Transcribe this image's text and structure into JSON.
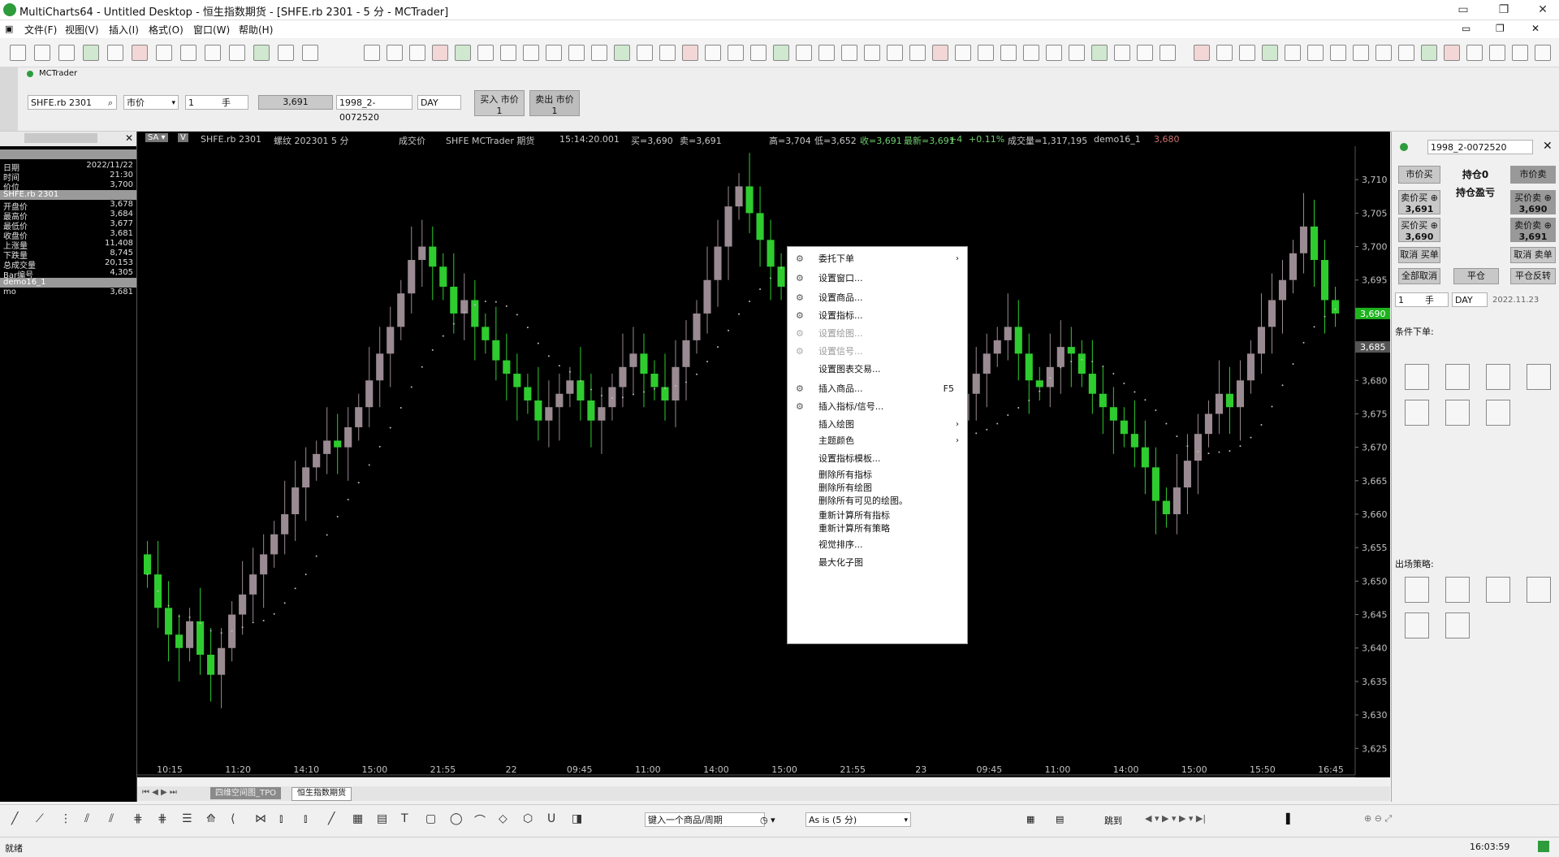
{
  "window": {
    "title": "MultiCharts64 - Untitled Desktop - 恒生指数期货 - [SHFE.rb 2301 - 5 分 - MCTrader]",
    "min_icon": "minimize-icon",
    "max_icon": "maximize-icon",
    "close_icon": "close-icon"
  },
  "menu": [
    "文件(F)",
    "视图(V)",
    "插入(I)",
    "格式(O)",
    "窗口(W)",
    "帮助(H)"
  ],
  "broker": "MCTrader",
  "trade": {
    "symbol": "SHFE.rb 2301",
    "order_type": "市价",
    "qty": "1",
    "qty_unit": "手",
    "price": "3,691",
    "account": "1998_2-0072520",
    "tif": "DAY",
    "buy_label": "买入 市价",
    "buy_qty": "1",
    "sell_label": "卖出 市价",
    "sell_qty": "1"
  },
  "data_window": {
    "header": "",
    "rows": [
      {
        "k": "日期",
        "v": "2022/11/22"
      },
      {
        "k": "时间",
        "v": "21:30"
      },
      {
        "k": "价位",
        "v": "3,700"
      }
    ],
    "section1": "SHFE.rb 2301",
    "rows2": [
      {
        "k": "开盘价",
        "v": "3,678"
      },
      {
        "k": "最高价",
        "v": "3,684"
      },
      {
        "k": "最低价",
        "v": "3,677"
      },
      {
        "k": "收盘价",
        "v": "3,681"
      },
      {
        "k": "上涨量",
        "v": "11,408"
      },
      {
        "k": "下跌量",
        "v": "8,745"
      },
      {
        "k": "总成交量",
        "v": "20,153"
      },
      {
        "k": "Bar编号",
        "v": "4,305"
      }
    ],
    "section2": "demo16_1",
    "rows3": [
      {
        "k": "mo",
        "v": "3,681"
      }
    ]
  },
  "chart_head": {
    "symbol": "SHFE.rb 2301",
    "contract": "螺纹 202301 5 分",
    "price_type": "成交价",
    "exchange": "SHFE MCTrader 期货",
    "time": "15:14:20.001",
    "bid": "买=3,690",
    "ask": "卖=3,691",
    "high": "高=3,704",
    "low": "低=3,652",
    "close": "收=3,691",
    "last": "最新=3,691",
    "change": "+4",
    "pct": "+0.11%",
    "volume": "成交量=1,317,195",
    "indicator": "demo16_1",
    "indicator_val": "3,680"
  },
  "context_menu": {
    "items": [
      {
        "label": "委托下单",
        "icon": "order-icon",
        "arrow": true
      },
      {
        "label": "设置窗口...",
        "icon": "window-settings-icon"
      },
      {
        "label": "设置商品...",
        "icon": "symbol-settings-icon"
      },
      {
        "label": "设置指标...",
        "icon": "indicator-settings-icon"
      },
      {
        "label": "设置绘图...",
        "icon": "drawing-settings-icon",
        "disabled": true
      },
      {
        "label": "设置信号...",
        "icon": "signal-settings-icon",
        "disabled": true
      },
      {
        "label": "设置图表交易...",
        "icon": ""
      },
      {
        "label": "插入商品...",
        "icon": "insert-symbol-icon",
        "shortcut": "F5"
      },
      {
        "label": "插入指标/信号...",
        "icon": "insert-indicator-icon"
      },
      {
        "label": "插入绘图",
        "icon": "",
        "arrow": true
      },
      {
        "label": "主题颜色",
        "icon": "",
        "arrow": true
      },
      {
        "label": "设置指标模板...",
        "icon": ""
      },
      {
        "label": "删除所有指标",
        "icon": ""
      },
      {
        "label": "删除所有绘图",
        "icon": ""
      },
      {
        "label": "删除所有可见的绘图。",
        "icon": ""
      },
      {
        "label": "重新计算所有指标",
        "icon": ""
      },
      {
        "label": "重新计算所有策略",
        "icon": ""
      },
      {
        "label": "视觉排序...",
        "icon": ""
      },
      {
        "label": "最大化子图",
        "icon": ""
      }
    ]
  },
  "right_panel": {
    "account": "1998_2-0072520",
    "tab_market": "市价买",
    "position_label": "持仓0",
    "pl_label": "持仓盈亏",
    "tab_sell": "市价卖",
    "sell_price_label": "卖价买 ⊕",
    "sell_price": "3,691",
    "buy_price_label": "买价买 ⊕",
    "buy_price": "3,690",
    "right_price_top_label": "买价卖 ⊕",
    "right_price_top": "3,690",
    "right_price_bot_label": "卖价卖 ⊕",
    "right_price_bot": "3,691",
    "cancel_buy": "取消 买单",
    "cancel_sell": "取消 卖单",
    "cancel_all": "全部取消",
    "flatten": "平仓",
    "reverse": "平仓反转",
    "qty": "1",
    "qty_unit": "手",
    "tif": "DAY",
    "date": "2022.11.23",
    "cond_label": "条件下单:",
    "exit_label": "出场策略:"
  },
  "tabs": [
    "四维空间图_TPO",
    "恒生指数期货"
  ],
  "bottom": {
    "symbol_input": "键入一个商品/周期",
    "timeframe": "As is (5 分)",
    "jump": "跳到"
  },
  "status": {
    "left": "就绪",
    "time": "16:03:59"
  },
  "chart_data": {
    "type": "candlestick",
    "y_ticks": [
      "3,710",
      "3,705",
      "3,700",
      "3,695",
      "3,690",
      "3,685",
      "3,680",
      "3,675",
      "3,670",
      "3,665",
      "3,660",
      "3,655",
      "3,650",
      "3,645",
      "3,640",
      "3,635",
      "3,630",
      "3,625"
    ],
    "ylim": [
      3622,
      3715
    ],
    "x_ticks": [
      "10:15",
      "11:20",
      "14:10",
      "15:00",
      "21:55",
      "22",
      "09:45",
      "11:00",
      "14:00",
      "15:00",
      "21:55",
      "23",
      "09:45",
      "11:00",
      "14:00",
      "15:00",
      "15:50",
      "16:45"
    ],
    "last_price_tags": [
      "3,690",
      "3,685"
    ],
    "up_color": "#9a8a92",
    "down_color": "#2ecc2e",
    "indicator_color": "#bdbdbd",
    "closes": [
      3651,
      3646,
      3642,
      3640,
      3644,
      3639,
      3636,
      3640,
      3645,
      3648,
      3651,
      3654,
      3657,
      3660,
      3664,
      3667,
      3669,
      3671,
      3670,
      3673,
      3676,
      3680,
      3684,
      3688,
      3693,
      3698,
      3700,
      3697,
      3694,
      3690,
      3692,
      3688,
      3686,
      3683,
      3681,
      3679,
      3677,
      3674,
      3676,
      3678,
      3680,
      3677,
      3674,
      3676,
      3679,
      3682,
      3684,
      3681,
      3679,
      3677,
      3682,
      3686,
      3690,
      3695,
      3700,
      3706,
      3709,
      3705,
      3701,
      3697,
      3694,
      3692,
      3690,
      3688,
      3686,
      3684,
      3682,
      3680,
      3678,
      3676,
      3674,
      3672,
      3668,
      3664,
      3660,
      3668,
      3674,
      3678,
      3681,
      3684,
      3686,
      3688,
      3684,
      3680,
      3679,
      3682,
      3685,
      3684,
      3681,
      3678,
      3676,
      3674,
      3672,
      3670,
      3667,
      3662,
      3660,
      3664,
      3668,
      3672,
      3675,
      3678,
      3676,
      3680,
      3684,
      3688,
      3692,
      3695,
      3699,
      3703,
      3698,
      3692,
      3690
    ]
  }
}
